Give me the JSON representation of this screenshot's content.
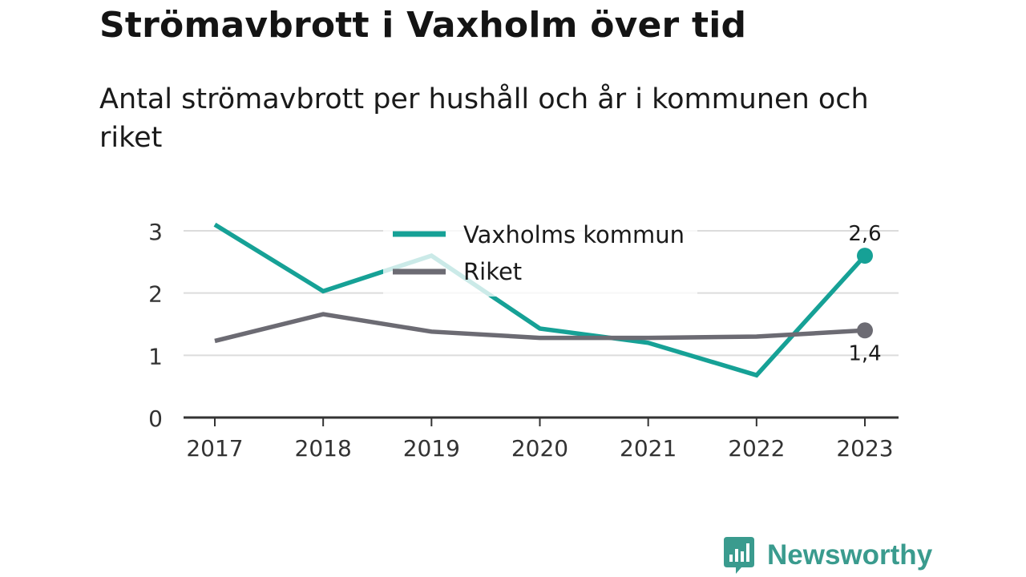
{
  "title": "Strömavbrott i Vaxholm över tid",
  "subtitle": "Antal strömavbrott per hushåll och år i kommunen och riket",
  "brand": {
    "name": "Newsworthy",
    "icon": "bar-chart-speech-bubble-icon",
    "color": "#3a9b8e"
  },
  "chart_data": {
    "type": "line",
    "x": [
      "2017",
      "2018",
      "2019",
      "2020",
      "2021",
      "2022",
      "2023"
    ],
    "series": [
      {
        "name": "Vaxholms kommun",
        "color": "#16a196",
        "values": [
          3.1,
          2.03,
          2.6,
          1.43,
          1.2,
          0.68,
          2.6
        ],
        "end_label": "2,6"
      },
      {
        "name": "Riket",
        "color": "#6c6b73",
        "values": [
          1.23,
          1.66,
          1.38,
          1.28,
          1.28,
          1.3,
          1.4
        ],
        "end_label": "1,4"
      }
    ],
    "yticks": [
      "0",
      "1",
      "2",
      "3"
    ],
    "ylim": [
      0,
      3
    ],
    "grid": true,
    "legend_position": "top-center"
  }
}
